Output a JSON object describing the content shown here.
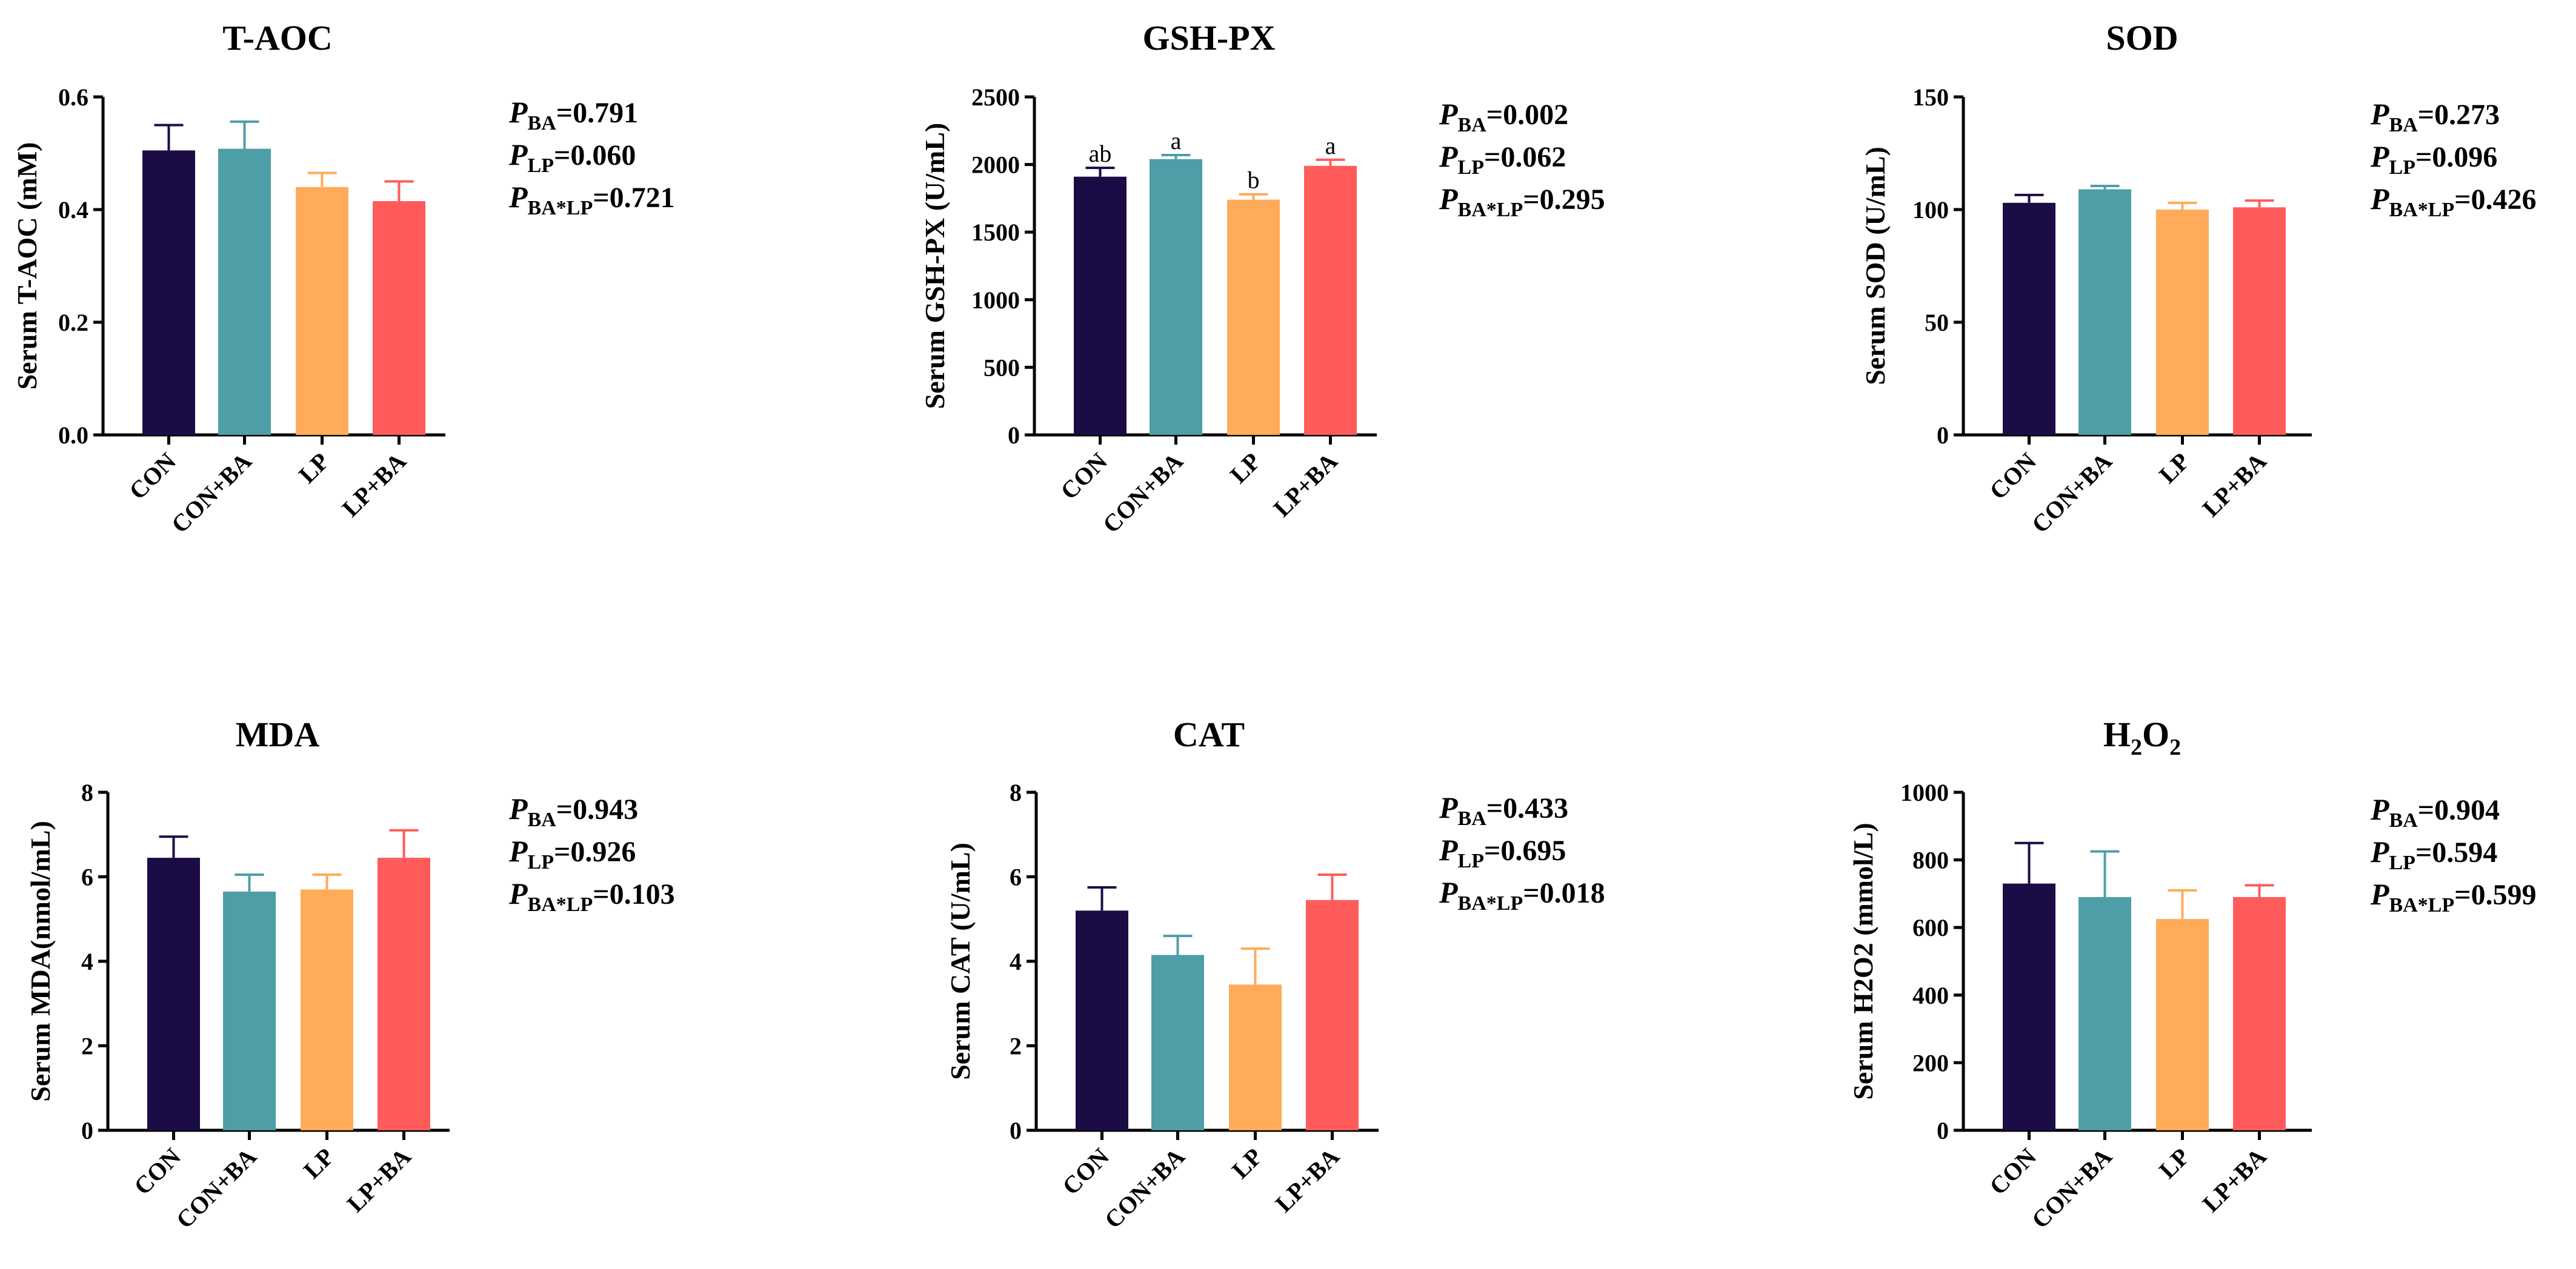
{
  "chart_data": [
    {
      "type": "bar",
      "title": "T-AOC",
      "ylabel": "Serum T-AOC (mM)",
      "categories": [
        "CON",
        "CON+BA",
        "LP",
        "LP+BA"
      ],
      "values": [
        0.505,
        0.508,
        0.44,
        0.415
      ],
      "errors": [
        0.045,
        0.048,
        0.025,
        0.035
      ],
      "sig_letters": [
        "",
        "",
        "",
        ""
      ],
      "ylim": [
        0,
        0.6
      ],
      "yticks": [
        "0.0",
        "0.2",
        "0.4",
        "0.6"
      ],
      "ytick_values": [
        0,
        0.2,
        0.4,
        0.6
      ],
      "stats": [
        {
          "p": "P",
          "sub": "BA",
          "value": "=0.791"
        },
        {
          "p": "P",
          "sub": "LP",
          "value": "=0.060"
        },
        {
          "p": "P",
          "sub": "BA*LP",
          "value": "=0.721"
        }
      ]
    },
    {
      "type": "bar",
      "title": "GSH-PX",
      "ylabel": "Serum GSH-PX (U/mL)",
      "categories": [
        "CON",
        "CON+BA",
        "LP",
        "LP+BA"
      ],
      "values": [
        1910,
        2040,
        1740,
        1990
      ],
      "errors": [
        65,
        30,
        40,
        45
      ],
      "sig_letters": [
        "ab",
        "a",
        "b",
        "a"
      ],
      "ylim": [
        0,
        2500
      ],
      "yticks": [
        "0",
        "500",
        "1000",
        "1500",
        "2000",
        "2500"
      ],
      "ytick_values": [
        0,
        500,
        1000,
        1500,
        2000,
        2500
      ],
      "stats": [
        {
          "p": "P",
          "sub": "BA",
          "value": "=0.002"
        },
        {
          "p": "P",
          "sub": "LP",
          "value": "=0.062"
        },
        {
          "p": "P",
          "sub": "BA*LP",
          "value": "=0.295"
        }
      ]
    },
    {
      "type": "bar",
      "title": "SOD",
      "ylabel": "Serum SOD (U/mL)",
      "categories": [
        "CON",
        "CON+BA",
        "LP",
        "LP+BA"
      ],
      "values": [
        103,
        109,
        100,
        101
      ],
      "errors": [
        3.5,
        1.5,
        3.0,
        3.0
      ],
      "sig_letters": [
        "",
        "",
        "",
        ""
      ],
      "ylim": [
        0,
        150
      ],
      "yticks": [
        "0",
        "50",
        "100",
        "150"
      ],
      "ytick_values": [
        0,
        50,
        100,
        150
      ],
      "stats": [
        {
          "p": "P",
          "sub": "BA",
          "value": "=0.273"
        },
        {
          "p": "P",
          "sub": "LP",
          "value": "=0.096"
        },
        {
          "p": "P",
          "sub": "BA*LP",
          "value": "=0.426"
        }
      ]
    },
    {
      "type": "bar",
      "title": "MDA",
      "ylabel": "Serum MDA(nmol/mL)",
      "categories": [
        "CON",
        "CON+BA",
        "LP",
        "LP+BA"
      ],
      "values": [
        6.45,
        5.65,
        5.7,
        6.45
      ],
      "errors": [
        0.5,
        0.4,
        0.35,
        0.65
      ],
      "sig_letters": [
        "",
        "",
        "",
        ""
      ],
      "ylim": [
        0,
        8
      ],
      "yticks": [
        "0",
        "2",
        "4",
        "6",
        "8"
      ],
      "ytick_values": [
        0,
        2,
        4,
        6,
        8
      ],
      "stats": [
        {
          "p": "P",
          "sub": "BA",
          "value": "=0.943"
        },
        {
          "p": "P",
          "sub": "LP",
          "value": "=0.926"
        },
        {
          "p": "P",
          "sub": "BA*LP",
          "value": "=0.103"
        }
      ]
    },
    {
      "type": "bar",
      "title": "CAT",
      "ylabel": "Serum CAT (U/mL)",
      "categories": [
        "CON",
        "CON+BA",
        "LP",
        "LP+BA"
      ],
      "values": [
        5.2,
        4.15,
        3.45,
        5.45
      ],
      "errors": [
        0.55,
        0.45,
        0.85,
        0.6
      ],
      "sig_letters": [
        "",
        "",
        "",
        ""
      ],
      "ylim": [
        0,
        8
      ],
      "yticks": [
        "0",
        "2",
        "4",
        "6",
        "8"
      ],
      "ytick_values": [
        0,
        2,
        4,
        6,
        8
      ],
      "stats": [
        {
          "p": "P",
          "sub": "BA",
          "value": "=0.433"
        },
        {
          "p": "P",
          "sub": "LP",
          "value": "=0.695"
        },
        {
          "p": "P",
          "sub": "BA*LP",
          "value": "=0.018"
        }
      ]
    },
    {
      "type": "bar",
      "title": "H2O2",
      "title_main": "H",
      "title_sub1": "2",
      "title_mid": "O",
      "title_sub2": "2",
      "ylabel": "Serum H2O2 (mmol/L)",
      "categories": [
        "CON",
        "CON+BA",
        "LP",
        "LP+BA"
      ],
      "values": [
        730,
        690,
        625,
        690
      ],
      "errors": [
        120,
        135,
        85,
        35
      ],
      "sig_letters": [
        "",
        "",
        "",
        ""
      ],
      "ylim": [
        0,
        1000
      ],
      "yticks": [
        "0",
        "200",
        "400",
        "600",
        "800",
        "1000"
      ],
      "ytick_values": [
        0,
        200,
        400,
        600,
        800,
        1000
      ],
      "stats": [
        {
          "p": "P",
          "sub": "BA",
          "value": "=0.904"
        },
        {
          "p": "P",
          "sub": "LP",
          "value": "=0.594"
        },
        {
          "p": "P",
          "sub": "BA*LP",
          "value": "=0.599"
        }
      ]
    }
  ],
  "colors": [
    "#1c0c45",
    "#4e9ea8",
    "#ffab5a",
    "#ff5b5b"
  ]
}
